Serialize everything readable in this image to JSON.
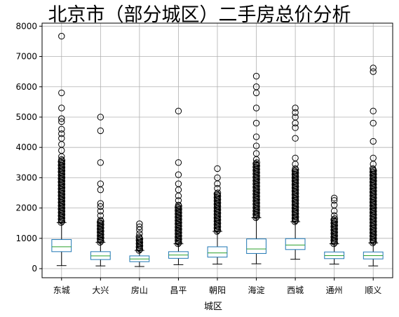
{
  "chart_data": {
    "type": "box",
    "title": "北京市（部分城区）二手房总价分析",
    "xlabel": "城区",
    "ylabel": "",
    "ylim": [
      -300,
      8100
    ],
    "yticks": [
      0,
      1000,
      2000,
      3000,
      4000,
      5000,
      6000,
      7000,
      8000
    ],
    "grid": true,
    "colors": {
      "box": "#1f77b4",
      "median": "#2ca02c",
      "whisker": "#000000",
      "flier": "#000000",
      "grid": "#b0b0b0"
    },
    "categories": [
      "东城",
      "大兴",
      "房山",
      "昌平",
      "朝阳",
      "海淀",
      "西城",
      "通州",
      "顺义"
    ],
    "boxes": [
      {
        "category": "东城",
        "whisker_low": 100,
        "q1": 560,
        "median": 720,
        "q3": 960,
        "whisker_high": 1520,
        "outliers_dense": [
          1520,
          3600
        ],
        "outliers": [
          3700,
          3900,
          4100,
          4300,
          4450,
          4600,
          4850,
          4950,
          5300,
          5800,
          7670
        ]
      },
      {
        "category": "大兴",
        "whisker_low": 90,
        "q1": 300,
        "median": 420,
        "q3": 560,
        "whisker_high": 870,
        "outliers_dense": [
          870,
          1600
        ],
        "outliers": [
          1750,
          1900,
          2050,
          2150,
          2600,
          2800,
          3500,
          4550,
          5000
        ]
      },
      {
        "category": "房山",
        "whisker_low": 70,
        "q1": 230,
        "median": 320,
        "q3": 420,
        "whisker_high": 600,
        "outliers_dense": [
          600,
          1050
        ],
        "outliers": [
          1150,
          1280,
          1380,
          1480
        ]
      },
      {
        "category": "昌平",
        "whisker_low": 130,
        "q1": 340,
        "median": 450,
        "q3": 560,
        "whisker_high": 820,
        "outliers_dense": [
          820,
          2100
        ],
        "outliers": [
          2250,
          2400,
          2600,
          2800,
          3100,
          3500,
          5200
        ]
      },
      {
        "category": "朝阳",
        "whisker_low": 150,
        "q1": 380,
        "median": 520,
        "q3": 720,
        "whisker_high": 1230,
        "outliers_dense": [
          1230,
          2500
        ],
        "outliers": [
          2650,
          2800,
          3000,
          3300
        ]
      },
      {
        "category": "海淀",
        "whisker_low": 160,
        "q1": 500,
        "median": 650,
        "q3": 980,
        "whisker_high": 1680,
        "outliers_dense": [
          1680,
          3500
        ],
        "outliers": [
          3600,
          3800,
          4050,
          4350,
          4800,
          5300,
          5800,
          6000,
          6350
        ]
      },
      {
        "category": "西城",
        "whisker_low": 310,
        "q1": 630,
        "median": 780,
        "q3": 990,
        "whisker_high": 1550,
        "outliers_dense": [
          1550,
          3300
        ],
        "outliers": [
          3450,
          3650,
          4300,
          4650,
          4800,
          5000,
          5150,
          5300
        ]
      },
      {
        "category": "通州",
        "whisker_low": 150,
        "q1": 330,
        "median": 430,
        "q3": 550,
        "whisker_high": 820,
        "outliers_dense": [
          820,
          1650
        ],
        "outliers": [
          1750,
          1900,
          2100,
          2250,
          2330
        ]
      },
      {
        "category": "顺义",
        "whisker_low": 90,
        "q1": 320,
        "median": 430,
        "q3": 550,
        "whisker_high": 850,
        "outliers_dense": [
          850,
          3300
        ],
        "outliers": [
          3450,
          3650,
          4200,
          4800,
          5200,
          6500,
          6620
        ]
      }
    ]
  }
}
